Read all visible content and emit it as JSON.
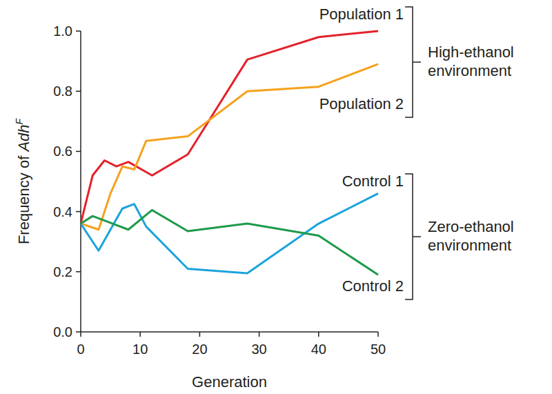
{
  "chart_data": {
    "type": "line",
    "x_label": "Generation",
    "y_label": "Frequency of AdhF",
    "xlim": [
      0,
      50
    ],
    "ylim": [
      0,
      1.0
    ],
    "xticks": [
      0,
      10,
      20,
      30,
      40,
      50
    ],
    "yticks": [
      {
        "value": 0,
        "label": "0.0"
      },
      {
        "value": 0.2,
        "label": "0.2"
      },
      {
        "value": 0.4,
        "label": "0.4"
      },
      {
        "value": 0.6,
        "label": "0.6"
      },
      {
        "value": 0.8,
        "label": "0.8"
      },
      {
        "value": 1.0,
        "label": "1.0"
      }
    ],
    "grid": false,
    "series": [
      {
        "name": "Population 1",
        "color": "#e3222b",
        "x": [
          0,
          2,
          4,
          6,
          8,
          12,
          18,
          28,
          40,
          50
        ],
        "values": [
          0.36,
          0.52,
          0.57,
          0.55,
          0.565,
          0.52,
          0.59,
          0.905,
          0.98,
          1.0
        ]
      },
      {
        "name": "Population 2",
        "color": "#f6a11c",
        "x": [
          0,
          3,
          5,
          7,
          9,
          11,
          18,
          28,
          40,
          50
        ],
        "values": [
          0.36,
          0.34,
          0.46,
          0.55,
          0.54,
          0.635,
          0.65,
          0.8,
          0.815,
          0.89
        ]
      },
      {
        "name": "Control 1",
        "color": "#1ba3dc",
        "x": [
          0,
          3,
          7,
          9,
          11,
          18,
          28,
          40,
          50
        ],
        "values": [
          0.36,
          0.27,
          0.41,
          0.425,
          0.35,
          0.21,
          0.195,
          0.36,
          0.46
        ]
      },
      {
        "name": "Control 2",
        "color": "#1e9a4a",
        "x": [
          0,
          2,
          4,
          8,
          12,
          18,
          28,
          40,
          50
        ],
        "values": [
          0.36,
          0.385,
          0.37,
          0.34,
          0.405,
          0.335,
          0.36,
          0.32,
          0.19
        ]
      }
    ],
    "groups": [
      {
        "label": [
          "High-ethanol",
          "environment"
        ],
        "series": [
          0,
          1
        ]
      },
      {
        "label": [
          "Zero-ethanol",
          "environment"
        ],
        "series": [
          2,
          3
        ]
      }
    ]
  }
}
